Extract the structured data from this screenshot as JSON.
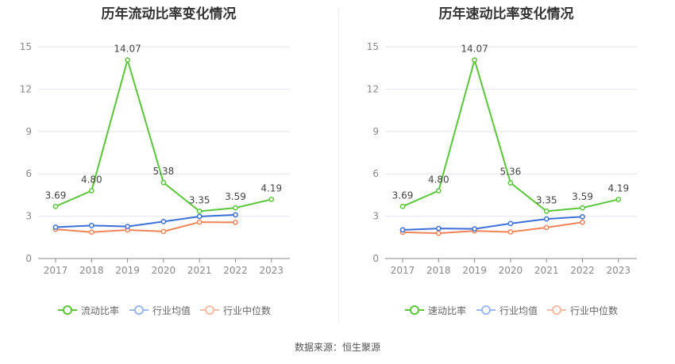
{
  "source": "数据来源：恒生聚源",
  "chart_data": [
    {
      "type": "line",
      "title": "历年流动比率变化情况",
      "categories": [
        "2017",
        "2018",
        "2019",
        "2020",
        "2021",
        "2022",
        "2023"
      ],
      "ylim": [
        0,
        15
      ],
      "yticks": [
        "0",
        "3",
        "6",
        "9",
        "12",
        "15"
      ],
      "grid": true,
      "legend_position": "bottom",
      "series": [
        {
          "name": "流动比率",
          "color": "#5ac73a",
          "values": [
            3.69,
            4.8,
            14.07,
            5.38,
            3.35,
            3.59,
            4.19
          ],
          "labels": [
            "3.69",
            "4.80",
            "14.07",
            "5.38",
            "3.35",
            "3.59",
            "4.19"
          ]
        },
        {
          "name": "行业均值",
          "color": "#3d6fd8",
          "values": [
            2.22,
            2.34,
            2.27,
            2.62,
            2.98,
            3.1,
            null
          ]
        },
        {
          "name": "行业中位数",
          "color": "#f08458",
          "values": [
            2.07,
            1.87,
            2.02,
            1.92,
            2.58,
            2.56,
            null
          ]
        }
      ]
    },
    {
      "type": "line",
      "title": "历年速动比率变化情况",
      "categories": [
        "2017",
        "2018",
        "2019",
        "2020",
        "2021",
        "2022",
        "2023"
      ],
      "ylim": [
        0,
        15
      ],
      "yticks": [
        "0",
        "3",
        "6",
        "9",
        "12",
        "15"
      ],
      "grid": true,
      "legend_position": "bottom",
      "series": [
        {
          "name": "速动比率",
          "color": "#5ac73a",
          "values": [
            3.69,
            4.8,
            14.07,
            5.36,
            3.35,
            3.59,
            4.19
          ],
          "labels": [
            "3.69",
            "4.80",
            "14.07",
            "5.36",
            "3.35",
            "3.59",
            "4.19"
          ]
        },
        {
          "name": "行业均值",
          "color": "#3d6fd8",
          "values": [
            2.03,
            2.13,
            2.1,
            2.48,
            2.8,
            2.96,
            null
          ]
        },
        {
          "name": "行业中位数",
          "color": "#f08458",
          "values": [
            1.86,
            1.79,
            1.96,
            1.88,
            2.2,
            2.57,
            null
          ]
        }
      ]
    }
  ]
}
